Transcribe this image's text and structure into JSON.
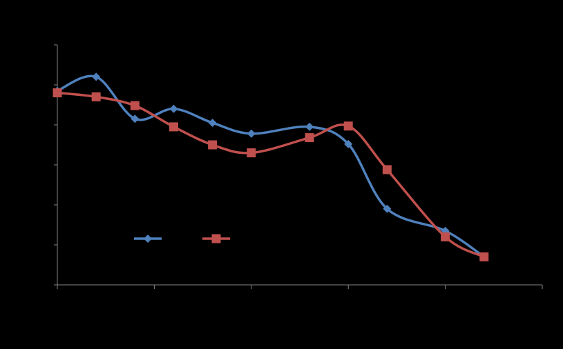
{
  "chart_data": {
    "type": "line",
    "smooth": true,
    "grid": false,
    "legend_position": "bottom-left",
    "xlim": [
      0,
      50
    ],
    "ylim": [
      0,
      6
    ],
    "x_ticks": [
      0,
      10,
      20,
      30,
      40,
      50
    ],
    "y_ticks": [
      0,
      1,
      2,
      3,
      4,
      5,
      6
    ],
    "series": [
      {
        "color": "#4F81BD",
        "marker": "diamond",
        "x": [
          0,
          4,
          8,
          12,
          16,
          20,
          26,
          30,
          34,
          40,
          44
        ],
        "y": [
          4.85,
          5.2,
          4.15,
          4.4,
          4.05,
          3.78,
          3.95,
          3.52,
          1.9,
          1.35,
          0.7
        ]
      },
      {
        "color": "#C0504D",
        "marker": "square",
        "x": [
          0,
          4,
          8,
          12,
          16,
          20,
          26,
          30,
          34,
          40,
          44
        ],
        "y": [
          4.8,
          4.7,
          4.48,
          3.95,
          3.5,
          3.3,
          3.68,
          3.97,
          2.88,
          1.2,
          0.7
        ]
      }
    ],
    "axis_color": "#868686"
  }
}
